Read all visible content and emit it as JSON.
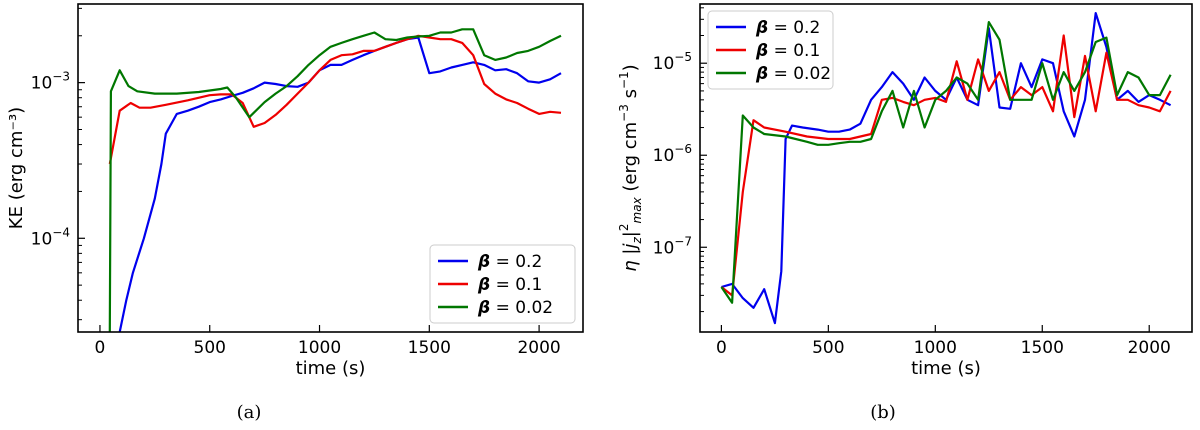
{
  "chart_data": [
    {
      "type": "line",
      "panel_label": "(a)",
      "xlabel": "time (s)",
      "ylabel": "KE (erg cm⁻³)",
      "xlim": [
        -100,
        2200
      ],
      "ylim": [
        2.5e-05,
        0.0032
      ],
      "yscale": "log",
      "xticks": [
        0,
        500,
        1000,
        1500,
        2000
      ],
      "xtick_labels": [
        "0",
        "500",
        "1000",
        "1500",
        "2000"
      ],
      "yticks": [
        0.0001,
        0.001
      ],
      "ytick_labels": [
        {
          "base": "10",
          "exp": "−4"
        },
        {
          "base": "10",
          "exp": "−3"
        }
      ],
      "legend_position": "lower-right",
      "series": [
        {
          "name": "β = 0.2",
          "color": "#0000ee",
          "x": [
            90,
            120,
            150,
            200,
            250,
            280,
            300,
            350,
            400,
            450,
            500,
            550,
            600,
            650,
            700,
            750,
            800,
            850,
            900,
            950,
            1000,
            1050,
            1100,
            1150,
            1200,
            1250,
            1300,
            1350,
            1400,
            1450,
            1500,
            1550,
            1600,
            1650,
            1700,
            1750,
            1800,
            1850,
            1900,
            1950,
            2000,
            2050,
            2100
          ],
          "y": [
            2.5e-05,
            4e-05,
            6e-05,
            0.0001,
            0.00018,
            0.0003,
            0.00047,
            0.00063,
            0.00066,
            0.0007,
            0.00075,
            0.00078,
            0.00082,
            0.00086,
            0.00092,
            0.001,
            0.00098,
            0.00095,
            0.00094,
            0.001,
            0.0012,
            0.0013,
            0.0013,
            0.0014,
            0.0015,
            0.0016,
            0.0017,
            0.0018,
            0.0019,
            0.00195,
            0.00115,
            0.00118,
            0.00125,
            0.0013,
            0.00135,
            0.0013,
            0.0012,
            0.00122,
            0.00115,
            0.00102,
            0.001,
            0.00105,
            0.00115
          ]
        },
        {
          "name": "β = 0.1",
          "color": "#ee0000",
          "x": [
            45,
            90,
            140,
            180,
            230,
            300,
            400,
            500,
            550,
            600,
            650,
            700,
            750,
            800,
            850,
            900,
            950,
            1000,
            1050,
            1100,
            1150,
            1200,
            1250,
            1300,
            1350,
            1400,
            1450,
            1500,
            1550,
            1600,
            1650,
            1700,
            1750,
            1800,
            1850,
            1900,
            1950,
            2000,
            2050,
            2100
          ],
          "y": [
            0.0003,
            0.00066,
            0.00074,
            0.00069,
            0.00069,
            0.00072,
            0.00077,
            0.00083,
            0.00084,
            0.00084,
            0.00074,
            0.00052,
            0.00055,
            0.00062,
            0.00072,
            0.00085,
            0.001,
            0.0012,
            0.0014,
            0.0015,
            0.00152,
            0.0016,
            0.0016,
            0.0017,
            0.0018,
            0.0019,
            0.002,
            0.00195,
            0.0019,
            0.0019,
            0.0018,
            0.0015,
            0.00098,
            0.00085,
            0.00078,
            0.00074,
            0.00068,
            0.00063,
            0.00065,
            0.00064
          ]
        },
        {
          "name": "β = 0.02",
          "color": "#007700",
          "x": [
            45,
            50,
            90,
            130,
            170,
            250,
            350,
            450,
            500,
            550,
            580,
            620,
            680,
            750,
            800,
            850,
            900,
            950,
            1000,
            1050,
            1100,
            1150,
            1200,
            1250,
            1300,
            1350,
            1400,
            1450,
            1500,
            1550,
            1600,
            1650,
            1700,
            1750,
            1800,
            1850,
            1900,
            1950,
            2000,
            2050,
            2100
          ],
          "y": [
            2.5e-05,
            0.00088,
            0.0012,
            0.00095,
            0.00088,
            0.00085,
            0.00085,
            0.00087,
            0.00089,
            0.00091,
            0.00093,
            0.0008,
            0.0006,
            0.00075,
            0.00085,
            0.00095,
            0.0011,
            0.0013,
            0.0015,
            0.0017,
            0.0018,
            0.0019,
            0.002,
            0.0021,
            0.0019,
            0.00188,
            0.00195,
            0.00198,
            0.002,
            0.0021,
            0.0021,
            0.0022,
            0.0022,
            0.0015,
            0.0014,
            0.00145,
            0.00155,
            0.0016,
            0.0017,
            0.00185,
            0.002
          ]
        }
      ]
    },
    {
      "type": "line",
      "panel_label": "(b)",
      "xlabel": "time (s)",
      "ylabel_parts": {
        "eta": "η",
        "j": "j",
        "sub": "z",
        "sup": "2",
        "max": "max",
        "unit_open": " (erg cm",
        "unit_exp1": "−3",
        "unit_mid": " s",
        "unit_exp2": "−1",
        "unit_close": ")"
      },
      "xlim": [
        -100,
        2200
      ],
      "ylim": [
        1.2e-08,
        4.4e-05
      ],
      "yscale": "log",
      "xticks": [
        0,
        500,
        1000,
        1500,
        2000
      ],
      "xtick_labels": [
        "0",
        "500",
        "1000",
        "1500",
        "2000"
      ],
      "yticks": [
        1e-07,
        1e-06,
        1e-05
      ],
      "ytick_labels": [
        {
          "base": "10",
          "exp": "−7"
        },
        {
          "base": "10",
          "exp": "−6"
        },
        {
          "base": "10",
          "exp": "−5"
        }
      ],
      "legend_position": "upper-left",
      "series": [
        {
          "name": "β = 0.2",
          "color": "#0000ee",
          "x": [
            0,
            50,
            100,
            150,
            200,
            250,
            280,
            300,
            330,
            380,
            450,
            500,
            550,
            600,
            650,
            700,
            750,
            800,
            850,
            900,
            950,
            1000,
            1050,
            1100,
            1150,
            1200,
            1250,
            1300,
            1350,
            1400,
            1450,
            1500,
            1550,
            1600,
            1650,
            1700,
            1750,
            1800,
            1850,
            1900,
            1950,
            2000,
            2050,
            2100
          ],
          "y": [
            3.7e-08,
            4e-08,
            2.8e-08,
            2.2e-08,
            3.5e-08,
            1.5e-08,
            5.5e-08,
            1.5e-06,
            2.1e-06,
            2e-06,
            1.9e-06,
            1.8e-06,
            1.8e-06,
            1.9e-06,
            2.2e-06,
            4e-06,
            5.5e-06,
            8e-06,
            6e-06,
            4e-06,
            7e-06,
            5e-06,
            4e-06,
            7e-06,
            4e-06,
            3.5e-06,
            2.4e-05,
            3.3e-06,
            3.2e-06,
            1e-05,
            5.5e-06,
            1.1e-05,
            1e-05,
            3e-06,
            1.6e-06,
            4e-06,
            3.5e-05,
            1.5e-05,
            4e-06,
            5e-06,
            3.8e-06,
            4.5e-06,
            4e-06,
            3.5e-06
          ]
        },
        {
          "name": "β = 0.1",
          "color": "#ee0000",
          "x": [
            0,
            50,
            100,
            150,
            200,
            300,
            400,
            500,
            600,
            650,
            700,
            750,
            800,
            850,
            900,
            950,
            1000,
            1050,
            1100,
            1150,
            1200,
            1250,
            1300,
            1350,
            1400,
            1450,
            1500,
            1550,
            1600,
            1650,
            1700,
            1750,
            1800,
            1850,
            1900,
            1950,
            2000,
            2050,
            2100
          ],
          "y": [
            3.7e-08,
            3e-08,
            4e-07,
            2.4e-06,
            2e-06,
            1.8e-06,
            1.6e-06,
            1.5e-06,
            1.5e-06,
            1.6e-06,
            1.7e-06,
            4e-06,
            4.2e-06,
            3.8e-06,
            3.5e-06,
            4e-06,
            4.2e-06,
            3.8e-06,
            1.05e-05,
            4e-06,
            1.1e-05,
            5e-06,
            8e-06,
            4e-06,
            5.5e-06,
            4.5e-06,
            5.5e-06,
            3e-06,
            2e-05,
            2.6e-06,
            1.2e-05,
            3e-06,
            1.3e-05,
            4e-06,
            4e-06,
            3.5e-06,
            3.3e-06,
            3e-06,
            5e-06
          ]
        },
        {
          "name": "β = 0.02",
          "color": "#007700",
          "x": [
            0,
            50,
            100,
            150,
            200,
            300,
            400,
            450,
            500,
            550,
            600,
            650,
            700,
            750,
            800,
            850,
            900,
            950,
            1000,
            1050,
            1100,
            1150,
            1200,
            1250,
            1300,
            1350,
            1400,
            1450,
            1500,
            1550,
            1600,
            1650,
            1700,
            1750,
            1800,
            1850,
            1900,
            1950,
            2000,
            2050,
            2100
          ],
          "y": [
            3.7e-08,
            2.5e-08,
            2.7e-06,
            2e-06,
            1.7e-06,
            1.6e-06,
            1.4e-06,
            1.3e-06,
            1.3e-06,
            1.35e-06,
            1.4e-06,
            1.4e-06,
            1.5e-06,
            3e-06,
            5e-06,
            2e-06,
            5e-06,
            2e-06,
            4e-06,
            5e-06,
            7e-06,
            6e-06,
            4e-06,
            2.8e-05,
            1.8e-05,
            4e-06,
            4e-06,
            4e-06,
            1e-05,
            4e-06,
            8e-06,
            5e-06,
            8e-06,
            1.7e-05,
            1.9e-05,
            4.5e-06,
            8e-06,
            7e-06,
            4.5e-06,
            4.5e-06,
            7.5e-06
          ]
        }
      ]
    }
  ]
}
